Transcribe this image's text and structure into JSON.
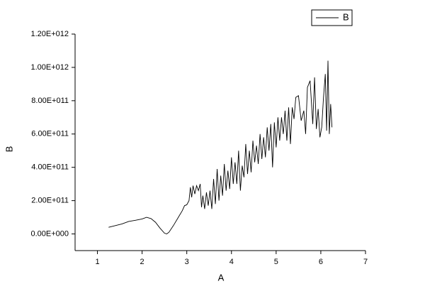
{
  "chart_data": {
    "type": "line",
    "xlabel": "A",
    "ylabel": "B",
    "x": [
      1.25,
      1.4,
      1.55,
      1.7,
      1.85,
      2.0,
      2.1,
      2.2,
      2.3,
      2.4,
      2.5,
      2.55,
      2.6,
      2.7,
      2.8,
      2.9,
      2.95,
      3.0,
      3.05,
      3.08,
      3.11,
      3.14,
      3.18,
      3.22,
      3.26,
      3.3,
      3.33,
      3.36,
      3.4,
      3.44,
      3.48,
      3.52,
      3.56,
      3.6,
      3.64,
      3.68,
      3.72,
      3.76,
      3.8,
      3.84,
      3.88,
      3.92,
      3.96,
      4.0,
      4.04,
      4.08,
      4.12,
      4.16,
      4.2,
      4.24,
      4.28,
      4.32,
      4.36,
      4.4,
      4.44,
      4.48,
      4.52,
      4.56,
      4.6,
      4.64,
      4.68,
      4.72,
      4.76,
      4.8,
      4.84,
      4.88,
      4.92,
      4.96,
      5.0,
      5.04,
      5.08,
      5.12,
      5.16,
      5.2,
      5.24,
      5.28,
      5.32,
      5.36,
      5.4,
      5.44,
      5.5,
      5.56,
      5.62,
      5.66,
      5.7,
      5.76,
      5.82,
      5.86,
      5.9,
      5.94,
      5.98,
      6.02,
      6.06,
      6.1,
      6.13,
      6.16,
      6.19,
      6.22,
      6.25
    ],
    "series": [
      {
        "name": "B",
        "color": "#000000",
        "values": [
          40000000000.0,
          50000000000.0,
          60000000000.0,
          75000000000.0,
          82000000000.0,
          90000000000.0,
          100000000000.0,
          92000000000.0,
          70000000000.0,
          35000000000.0,
          5000000000.0,
          0,
          10000000000.0,
          50000000000.0,
          95000000000.0,
          140000000000.0,
          170000000000.0,
          175000000000.0,
          200000000000.0,
          280000000000.0,
          220000000000.0,
          290000000000.0,
          240000000000.0,
          290000000000.0,
          260000000000.0,
          300000000000.0,
          160000000000.0,
          230000000000.0,
          150000000000.0,
          250000000000.0,
          170000000000.0,
          260000000000.0,
          150000000000.0,
          330000000000.0,
          180000000000.0,
          390000000000.0,
          200000000000.0,
          350000000000.0,
          230000000000.0,
          420000000000.0,
          260000000000.0,
          380000000000.0,
          270000000000.0,
          460000000000.0,
          300000000000.0,
          430000000000.0,
          300000000000.0,
          500000000000.0,
          260000000000.0,
          410000000000.0,
          340000000000.0,
          540000000000.0,
          360000000000.0,
          500000000000.0,
          370000000000.0,
          560000000000.0,
          430000000000.0,
          530000000000.0,
          420000000000.0,
          600000000000.0,
          450000000000.0,
          580000000000.0,
          460000000000.0,
          640000000000.0,
          500000000000.0,
          660000000000.0,
          400000000000.0,
          670000000000.0,
          520000000000.0,
          700000000000.0,
          560000000000.0,
          700000000000.0,
          600000000000.0,
          740000000000.0,
          560000000000.0,
          760000000000.0,
          540000000000.0,
          760000000000.0,
          690000000000.0,
          820000000000.0,
          830000000000.0,
          680000000000.0,
          740000000000.0,
          600000000000.0,
          880000000000.0,
          920000000000.0,
          660000000000.0,
          940000000000.0,
          630000000000.0,
          750000000000.0,
          580000000000.0,
          640000000000.0,
          820000000000.0,
          960000000000.0,
          620000000000.0,
          1040000000000.0,
          600000000000.0,
          780000000000.0,
          640000000000.0
        ]
      }
    ],
    "xlim": [
      0.5,
      7
    ],
    "xticks": [
      1,
      2,
      3,
      4,
      5,
      6,
      7
    ],
    "ylim": [
      -100000000000.0,
      1200000000000.0
    ],
    "yticks": [
      {
        "value": 0,
        "label": "0.00E+000"
      },
      {
        "value": 200000000000.0,
        "label": "2.00E+011"
      },
      {
        "value": 400000000000.0,
        "label": "4.00E+011"
      },
      {
        "value": 600000000000.0,
        "label": "6.00E+011"
      },
      {
        "value": 800000000000.0,
        "label": "8.00E+011"
      },
      {
        "value": 1000000000000.0,
        "label": "1.00E+012"
      },
      {
        "value": 1200000000000.0,
        "label": "1.20E+012"
      }
    ],
    "grid": false,
    "legend": "upper right"
  }
}
